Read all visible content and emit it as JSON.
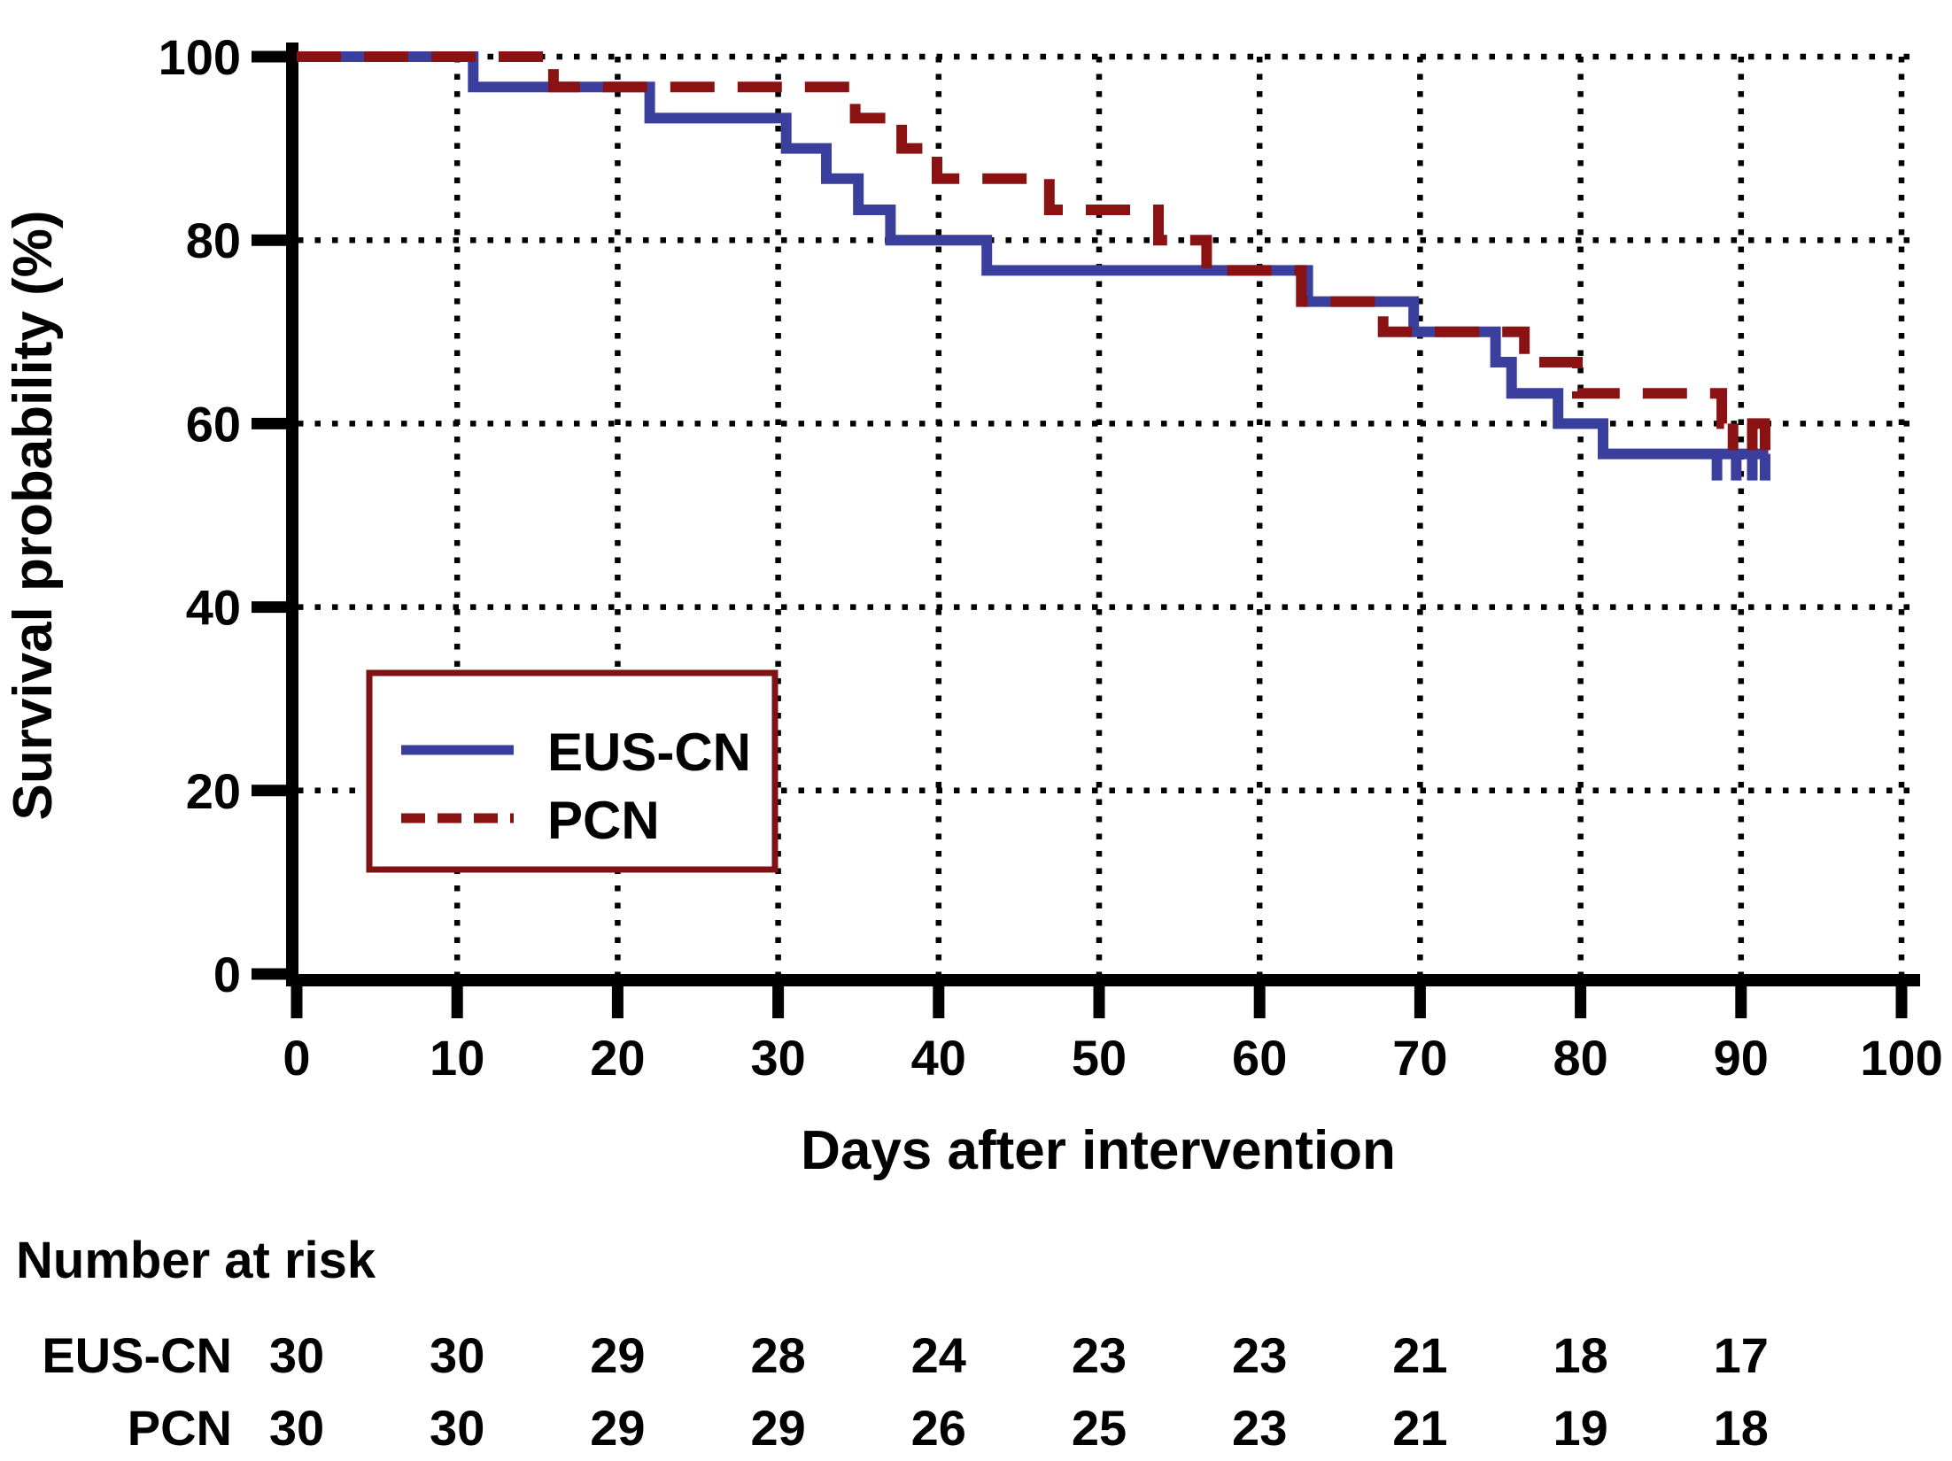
{
  "chart_data": {
    "type": "line",
    "subtype": "kaplan-meier-step-curve",
    "title": "",
    "x_axis": {
      "title": "Days after intervention",
      "ticks": [
        0,
        10,
        20,
        30,
        40,
        50,
        60,
        70,
        80,
        90,
        100
      ],
      "range": [
        0,
        100
      ],
      "grid": true
    },
    "y_axis": {
      "title": "Survival probability (%)",
      "ticks": [
        0,
        20,
        40,
        60,
        80,
        100
      ],
      "range": [
        0,
        100
      ],
      "grid": true
    },
    "grid_style": "black-dotted",
    "legend": {
      "position": "inside-lower-left",
      "border_color": "#7e1315",
      "items": [
        {
          "label": "EUS-CN",
          "color": "#3a3f9e",
          "line_style": "solid"
        },
        {
          "label": "PCN",
          "color": "#8b1212",
          "line_style": "dashed"
        }
      ]
    },
    "series": [
      {
        "name": "EUS-CN",
        "color": "#3a3f9e",
        "line_style": "solid",
        "steps": [
          [
            0,
            100
          ],
          [
            11,
            100
          ],
          [
            11,
            96.7
          ],
          [
            22,
            96.7
          ],
          [
            22,
            93.3
          ],
          [
            30.5,
            93.3
          ],
          [
            30.5,
            90
          ],
          [
            33,
            90
          ],
          [
            33,
            86.7
          ],
          [
            35,
            86.7
          ],
          [
            35,
            83.3
          ],
          [
            37,
            83.3
          ],
          [
            37,
            80
          ],
          [
            43,
            80
          ],
          [
            43,
            76.7
          ],
          [
            63,
            76.7
          ],
          [
            63,
            73.3
          ],
          [
            69.6,
            73.3
          ],
          [
            69.6,
            70
          ],
          [
            74.7,
            70
          ],
          [
            74.7,
            66.7
          ],
          [
            75.7,
            66.7
          ],
          [
            75.7,
            63.3
          ],
          [
            78.6,
            63.3
          ],
          [
            78.6,
            60
          ],
          [
            81.4,
            60
          ],
          [
            81.4,
            56.7
          ],
          [
            91.7,
            56.7
          ]
        ],
        "censor_marks_days": [
          88.5,
          89.7,
          90.7,
          91.5
        ],
        "censor_level": 56.7
      },
      {
        "name": "PCN",
        "color": "#8b1212",
        "line_style": "dashed",
        "steps": [
          [
            0,
            100
          ],
          [
            16,
            100
          ],
          [
            16,
            96.7
          ],
          [
            34.8,
            96.7
          ],
          [
            34.8,
            93.3
          ],
          [
            37.7,
            93.3
          ],
          [
            37.7,
            90
          ],
          [
            39.9,
            90
          ],
          [
            39.9,
            86.7
          ],
          [
            46.9,
            86.7
          ],
          [
            46.9,
            83.3
          ],
          [
            53.7,
            83.3
          ],
          [
            53.7,
            80
          ],
          [
            56.7,
            80
          ],
          [
            56.7,
            76.7
          ],
          [
            62.6,
            76.7
          ],
          [
            62.6,
            73.3
          ],
          [
            67.7,
            73.3
          ],
          [
            67.7,
            70
          ],
          [
            76.5,
            70
          ],
          [
            76.5,
            66.7
          ],
          [
            79.8,
            66.7
          ],
          [
            79.8,
            63.3
          ],
          [
            88.8,
            63.3
          ],
          [
            88.8,
            60
          ],
          [
            91.8,
            60
          ]
        ],
        "censor_marks_days": [
          89.5,
          90.7,
          91.5
        ],
        "censor_level": 60
      }
    ],
    "risk_table": {
      "heading": "Number at risk",
      "timepoints": [
        0,
        10,
        20,
        30,
        40,
        50,
        60,
        70,
        80,
        90
      ],
      "rows": [
        {
          "label": "EUS-CN",
          "values": [
            30,
            30,
            29,
            28,
            24,
            23,
            23,
            21,
            18,
            17
          ]
        },
        {
          "label": "PCN",
          "values": [
            30,
            30,
            29,
            29,
            26,
            25,
            23,
            21,
            19,
            18
          ]
        }
      ]
    }
  }
}
